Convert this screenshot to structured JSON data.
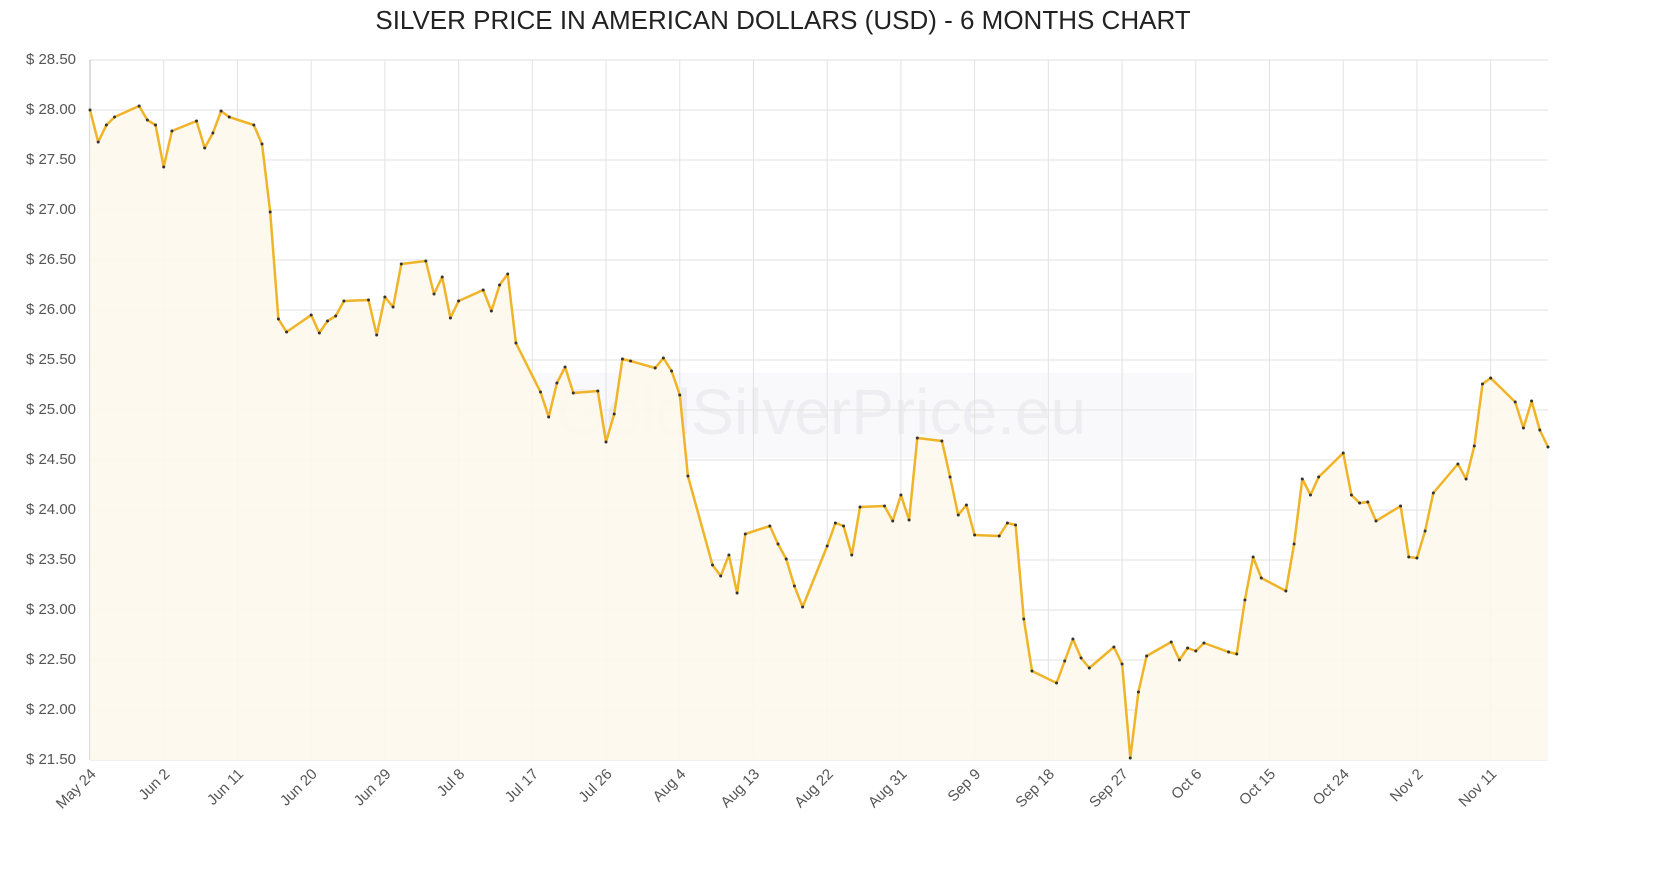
{
  "chart_data": {
    "type": "line",
    "title": "SILVER PRICE IN AMERICAN DOLLARS (USD) - 6 MONTHS CHART",
    "watermark": "GoldSilverPrice.eu",
    "color": "#f0b429",
    "area_color": "#fdf8ec",
    "grid": true,
    "xlim": [
      0,
      178
    ],
    "xticks": [
      {
        "value": 0,
        "label": "May 24"
      },
      {
        "value": 9,
        "label": "Jun 2"
      },
      {
        "value": 18,
        "label": "Jun 11"
      },
      {
        "value": 27,
        "label": "Jun 20"
      },
      {
        "value": 36,
        "label": "Jun 29"
      },
      {
        "value": 45,
        "label": "Jul 8"
      },
      {
        "value": 54,
        "label": "Jul 17"
      },
      {
        "value": 63,
        "label": "Jul 26"
      },
      {
        "value": 72,
        "label": "Aug 4"
      },
      {
        "value": 81,
        "label": "Aug 13"
      },
      {
        "value": 90,
        "label": "Aug 22"
      },
      {
        "value": 99,
        "label": "Aug 31"
      },
      {
        "value": 108,
        "label": "Sep 9"
      },
      {
        "value": 117,
        "label": "Sep 18"
      },
      {
        "value": 126,
        "label": "Sep 27"
      },
      {
        "value": 135,
        "label": "Oct 6"
      },
      {
        "value": 144,
        "label": "Oct 15"
      },
      {
        "value": 153,
        "label": "Oct 24"
      },
      {
        "value": 162,
        "label": "Nov 2"
      },
      {
        "value": 171,
        "label": "Nov 11"
      }
    ],
    "ylim": [
      21.5,
      28.5
    ],
    "yticks": [
      {
        "value": 21.5,
        "label": "$ 21.50"
      },
      {
        "value": 22,
        "label": "$ 22.00"
      },
      {
        "value": 22.5,
        "label": "$ 22.50"
      },
      {
        "value": 23,
        "label": "$ 23.00"
      },
      {
        "value": 23.5,
        "label": "$ 23.50"
      },
      {
        "value": 24,
        "label": "$ 24.00"
      },
      {
        "value": 24.5,
        "label": "$ 24.50"
      },
      {
        "value": 25,
        "label": "$ 25.00"
      },
      {
        "value": 25.5,
        "label": "$ 25.50"
      },
      {
        "value": 26,
        "label": "$ 26.00"
      },
      {
        "value": 26.5,
        "label": "$ 26.50"
      },
      {
        "value": 27,
        "label": "$ 27.00"
      },
      {
        "value": 27.5,
        "label": "$ 27.50"
      },
      {
        "value": 28,
        "label": "$ 28.00"
      },
      {
        "value": 28.5,
        "label": "$ 28.50"
      }
    ],
    "x": [
      0,
      1,
      2,
      3,
      6,
      7,
      8,
      9,
      10,
      13,
      14,
      15,
      16,
      17,
      20,
      21,
      22,
      23,
      24,
      27,
      28,
      29,
      30,
      31,
      34,
      35,
      36,
      37,
      38,
      41,
      42,
      43,
      44,
      45,
      48,
      49,
      50,
      51,
      52,
      55,
      56,
      57,
      58,
      59,
      62,
      63,
      64,
      65,
      66,
      69,
      70,
      71,
      72,
      73,
      76,
      77,
      78,
      79,
      80,
      83,
      84,
      85,
      86,
      87,
      90,
      91,
      92,
      93,
      94,
      97,
      98,
      99,
      100,
      101,
      104,
      105,
      106,
      107,
      108,
      111,
      112,
      113,
      114,
      115,
      118,
      119,
      120,
      121,
      122,
      125,
      126,
      127,
      128,
      129,
      132,
      133,
      134,
      135,
      136,
      139,
      140,
      141,
      142,
      143,
      146,
      147,
      148,
      149,
      150,
      153,
      154,
      155,
      156,
      157,
      160,
      161,
      162,
      163,
      164,
      167,
      168,
      169,
      170,
      171,
      174,
      175,
      176,
      177,
      178
    ],
    "values": [
      28.0,
      27.68,
      27.85,
      27.93,
      28.04,
      27.9,
      27.85,
      27.43,
      27.79,
      27.89,
      27.62,
      27.77,
      27.99,
      27.93,
      27.85,
      27.66,
      26.98,
      25.91,
      25.78,
      25.95,
      25.77,
      25.89,
      25.94,
      26.09,
      26.1,
      25.75,
      26.13,
      26.03,
      26.46,
      26.49,
      26.16,
      26.33,
      25.92,
      26.09,
      26.2,
      25.99,
      26.25,
      26.36,
      25.67,
      25.18,
      24.93,
      25.27,
      25.43,
      25.17,
      25.19,
      24.68,
      24.96,
      25.51,
      25.49,
      25.42,
      25.52,
      25.39,
      25.15,
      24.34,
      23.45,
      23.34,
      23.55,
      23.17,
      23.76,
      23.84,
      23.66,
      23.51,
      23.24,
      23.03,
      23.64,
      23.87,
      23.84,
      23.55,
      24.03,
      24.04,
      23.89,
      24.15,
      23.9,
      24.72,
      24.69,
      24.33,
      23.95,
      24.05,
      23.75,
      23.74,
      23.87,
      23.85,
      22.91,
      22.39,
      22.27,
      22.49,
      22.71,
      22.52,
      22.42,
      22.63,
      22.46,
      21.52,
      22.18,
      22.54,
      22.68,
      22.5,
      22.62,
      22.59,
      22.67,
      22.58,
      22.56,
      23.1,
      23.53,
      23.32,
      23.19,
      23.66,
      24.31,
      24.15,
      24.33,
      24.57,
      24.15,
      24.07,
      24.08,
      23.89,
      24.04,
      23.53,
      23.52,
      23.79,
      24.17,
      24.46,
      24.31,
      24.64,
      25.26,
      25.32,
      25.08,
      24.82,
      25.09,
      24.8,
      24.63
    ]
  }
}
